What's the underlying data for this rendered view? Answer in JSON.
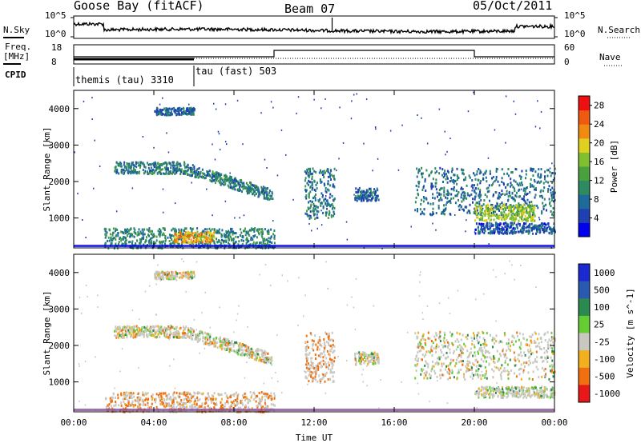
{
  "header": {
    "station": "Goose Bay (fitACF)",
    "beam": "Beam 07",
    "date": "05/Oct/2011"
  },
  "top_panels": {
    "noise_left_label": "N.Sky",
    "noise_right_label": "N.Search",
    "noise_left_ticks": [
      "10^5",
      "10^0"
    ],
    "noise_right_ticks": [
      "10^5",
      "10^0"
    ],
    "freq_label_1": "Freq.",
    "freq_label_2": "[MHz]",
    "freq_ticks": [
      "18",
      "8"
    ],
    "nave_label": "Nave",
    "nave_ticks": [
      "60",
      "0"
    ],
    "cpid_label": "CPID",
    "cpid_segments": [
      {
        "name": "themis (tau)",
        "id": "3310",
        "start_hour": 0,
        "end_hour": 6
      },
      {
        "name": "tau (fast)",
        "id": "503",
        "start_hour": 6,
        "end_hour": 24
      }
    ]
  },
  "chart_data": [
    {
      "type": "heatmap",
      "name": "Power",
      "xlabel": "Time UT",
      "ylabel": "Slant Range [km]",
      "xlim": [
        0,
        24
      ],
      "ylim": [
        180,
        4500
      ],
      "x_ticks": [
        "00:00",
        "04:00",
        "08:00",
        "12:00",
        "16:00",
        "20:00",
        "00:00"
      ],
      "y_ticks": [
        1000,
        2000,
        3000,
        4000
      ],
      "colorbar": {
        "label": "Power [dB]",
        "range": [
          0,
          30
        ],
        "ticks": [
          4,
          8,
          12,
          16,
          20,
          24,
          28
        ],
        "colors": [
          "#0000ee",
          "#1e40b0",
          "#1e6a9a",
          "#2e8a60",
          "#4aa03c",
          "#80c030",
          "#e0d020",
          "#f08a10",
          "#f05a10",
          "#ee1010"
        ]
      },
      "echo_regions": [
        {
          "t0": 2.0,
          "t1": 9.9,
          "r0": 1550,
          "r1": 2600,
          "power_db": 9
        },
        {
          "t0": 4.0,
          "t1": 6.0,
          "r0": 3850,
          "r1": 4050,
          "power_db": 7
        },
        {
          "t0": 1.5,
          "t1": 10.0,
          "r0": 200,
          "r1": 750,
          "power_db": 10
        },
        {
          "t0": 5.0,
          "t1": 7.0,
          "r0": 350,
          "r1": 650,
          "power_db": 21
        },
        {
          "t0": 11.5,
          "t1": 13.0,
          "r0": 1000,
          "r1": 2400,
          "power_db": 9
        },
        {
          "t0": 14.0,
          "t1": 15.2,
          "r0": 1500,
          "r1": 1850,
          "power_db": 7
        },
        {
          "t0": 17.0,
          "t1": 24.0,
          "r0": 1100,
          "r1": 2400,
          "power_db": 8
        },
        {
          "t0": 20.0,
          "t1": 23.0,
          "r0": 950,
          "r1": 1400,
          "power_db": 17
        },
        {
          "t0": 20.0,
          "t1": 24.0,
          "r0": 600,
          "r1": 900,
          "power_db": 6
        }
      ]
    },
    {
      "type": "heatmap",
      "name": "Velocity",
      "xlabel": "Time UT",
      "ylabel": "Slant Range [km]",
      "xlim": [
        0,
        24
      ],
      "ylim": [
        180,
        4500
      ],
      "x_ticks": [
        "00:00",
        "04:00",
        "08:00",
        "12:00",
        "16:00",
        "20:00",
        "00:00"
      ],
      "y_ticks": [
        1000,
        2000,
        3000,
        4000
      ],
      "colorbar": {
        "label": "Velocity [m s^-1]",
        "tick_labels": [
          "1000",
          "500",
          "100",
          "25",
          "-25",
          "-100",
          "-500",
          "-1000"
        ],
        "colors": [
          "#1a2ad0",
          "#2a5ab0",
          "#2a8a50",
          "#66cc33",
          "#c8c8c0",
          "#f0b020",
          "#f07010",
          "#e81818"
        ]
      },
      "echo_regions": [
        {
          "t0": 2.0,
          "t1": 9.9,
          "r0": 1550,
          "r1": 2600,
          "velocity": 0
        },
        {
          "t0": 4.0,
          "t1": 6.0,
          "r0": 3850,
          "r1": 4050,
          "velocity": 0
        },
        {
          "t0": 1.5,
          "t1": 10.0,
          "r0": 200,
          "r1": 750,
          "velocity": -200
        },
        {
          "t0": 11.5,
          "t1": 13.0,
          "r0": 1000,
          "r1": 2400,
          "velocity": -300
        },
        {
          "t0": 14.0,
          "t1": 15.2,
          "r0": 1500,
          "r1": 1850,
          "velocity": 0
        },
        {
          "t0": 17.0,
          "t1": 24.0,
          "r0": 1100,
          "r1": 2400,
          "velocity": 0
        },
        {
          "t0": 20.0,
          "t1": 24.0,
          "r0": 600,
          "r1": 900,
          "velocity": 60
        }
      ]
    }
  ]
}
